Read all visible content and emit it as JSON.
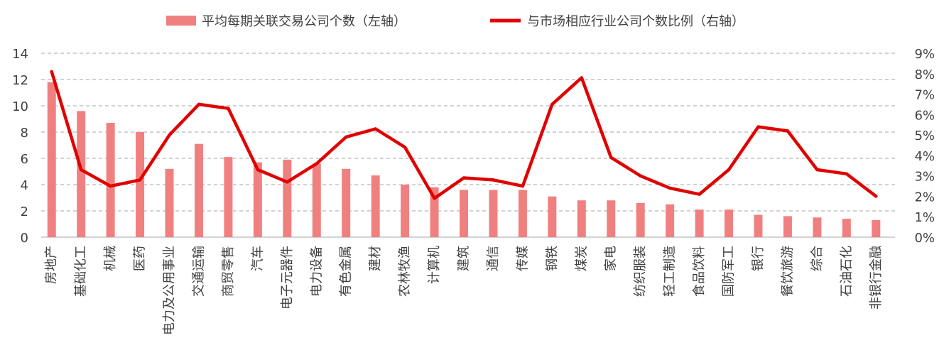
{
  "chart_data": {
    "type": "bar",
    "categories": [
      "房地产",
      "基础化工",
      "机械",
      "医药",
      "电力及公用事业",
      "交通运输",
      "商贸零售",
      "汽车",
      "电子元器件",
      "电力设备",
      "有色金属",
      "建材",
      "农林牧渔",
      "计算机",
      "建筑",
      "通信",
      "传媒",
      "钢铁",
      "煤炭",
      "家电",
      "纺织服装",
      "轻工制造",
      "食品饮料",
      "国防军工",
      "银行",
      "餐饮旅游",
      "综合",
      "石油石化",
      "非银行金融"
    ],
    "series": [
      {
        "name": "平均每期关联交易公司个数（左轴）",
        "type": "bar",
        "axis": "left",
        "values": [
          11.8,
          9.6,
          8.7,
          8.0,
          5.2,
          7.1,
          6.1,
          5.7,
          5.9,
          5.6,
          5.2,
          4.7,
          4.0,
          3.8,
          3.6,
          3.6,
          3.6,
          3.1,
          2.8,
          2.8,
          2.6,
          2.5,
          2.1,
          2.1,
          1.7,
          1.6,
          1.5,
          1.4,
          1.3
        ]
      },
      {
        "name": "与市场相应行业公司个数比例（右轴）",
        "type": "line",
        "axis": "right",
        "values": [
          8.1,
          3.3,
          2.5,
          2.8,
          5.0,
          6.5,
          6.3,
          3.3,
          2.7,
          3.6,
          4.9,
          5.3,
          4.4,
          1.9,
          2.9,
          2.8,
          2.5,
          6.5,
          7.8,
          3.9,
          3.0,
          2.4,
          2.1,
          3.3,
          5.4,
          5.2,
          3.3,
          3.1,
          2.0
        ]
      }
    ],
    "ylim_left": [
      0,
      14
    ],
    "ylim_right": [
      0,
      9
    ],
    "yticks_left": [
      "0",
      "2",
      "4",
      "6",
      "8",
      "10",
      "12",
      "14"
    ],
    "yticks_right": [
      "0%",
      "1%",
      "2%",
      "3%",
      "4%",
      "5%",
      "6%",
      "7%",
      "8%",
      "9%"
    ],
    "grid": "horizontal dashed",
    "legend_position": "top",
    "colors": {
      "bar": "#f08080",
      "line": "#e00000",
      "grid": "#a6a6a6",
      "text": "#404040"
    }
  }
}
